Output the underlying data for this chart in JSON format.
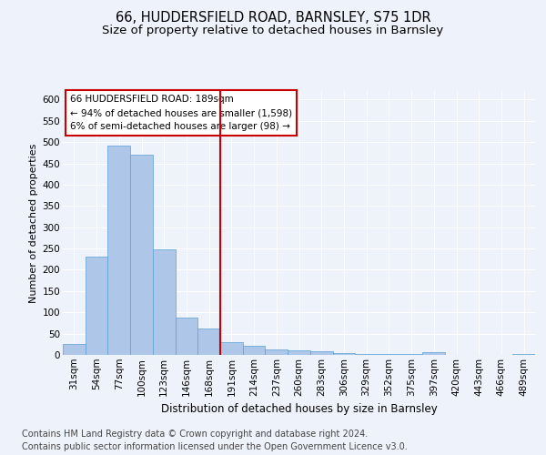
{
  "title1": "66, HUDDERSFIELD ROAD, BARNSLEY, S75 1DR",
  "title2": "Size of property relative to detached houses in Barnsley",
  "xlabel": "Distribution of detached houses by size in Barnsley",
  "ylabel": "Number of detached properties",
  "footer1": "Contains HM Land Registry data © Crown copyright and database right 2024.",
  "footer2": "Contains public sector information licensed under the Open Government Licence v3.0.",
  "annotation_title": "66 HUDDERSFIELD ROAD: 189sqm",
  "annotation_line1": "← 94% of detached houses are smaller (1,598)",
  "annotation_line2": "6% of semi-detached houses are larger (98) →",
  "bar_labels": [
    "31sqm",
    "54sqm",
    "77sqm",
    "100sqm",
    "123sqm",
    "146sqm",
    "168sqm",
    "191sqm",
    "214sqm",
    "237sqm",
    "260sqm",
    "283sqm",
    "306sqm",
    "329sqm",
    "352sqm",
    "375sqm",
    "397sqm",
    "420sqm",
    "443sqm",
    "466sqm",
    "489sqm"
  ],
  "bar_values": [
    25,
    230,
    491,
    470,
    248,
    88,
    62,
    30,
    22,
    12,
    10,
    9,
    4,
    3,
    2,
    2,
    6,
    1,
    1,
    1,
    3
  ],
  "bar_color": "#aec6e8",
  "bar_edge_color": "#5a9fd4",
  "vline_color": "#cc0000",
  "vline_x": 6.5,
  "annotation_box_color": "#cc0000",
  "ylim": [
    0,
    620
  ],
  "yticks": [
    0,
    50,
    100,
    150,
    200,
    250,
    300,
    350,
    400,
    450,
    500,
    550,
    600
  ],
  "bg_color": "#eef2fa",
  "plot_bg_color": "#eef2fa",
  "grid_color": "#ffffff",
  "title1_fontsize": 10.5,
  "title2_fontsize": 9.5,
  "xlabel_fontsize": 8.5,
  "ylabel_fontsize": 8,
  "tick_fontsize": 7.5,
  "footer_fontsize": 7,
  "ann_fontsize": 7.5
}
